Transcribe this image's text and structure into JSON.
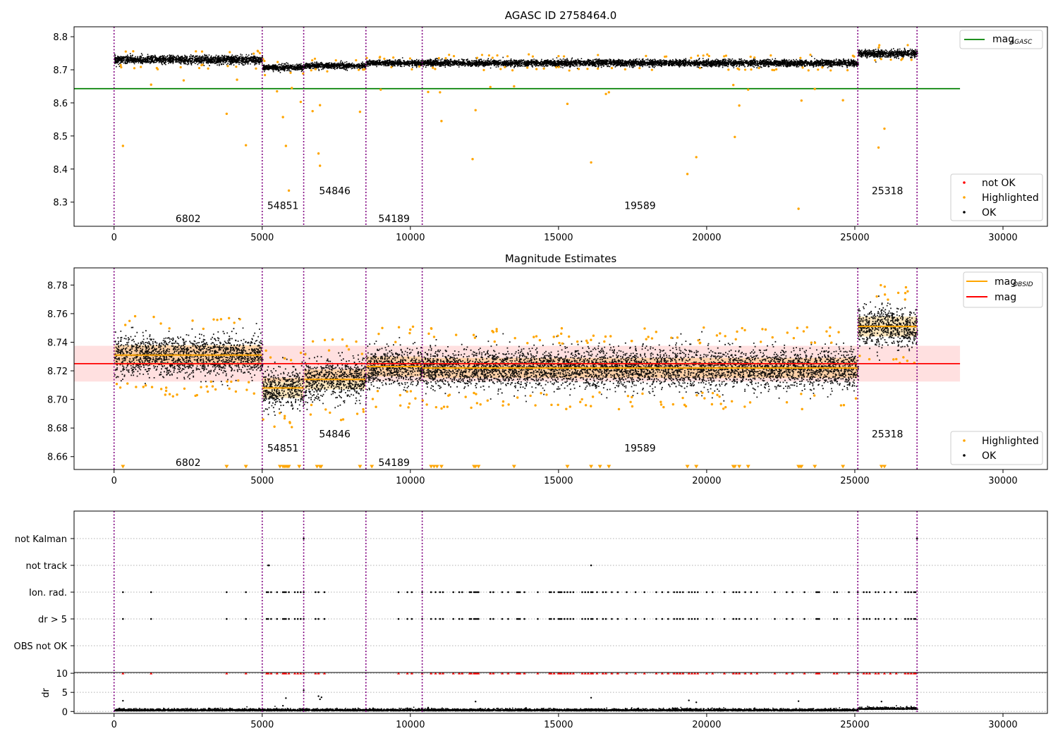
{
  "figure": {
    "panels": [
      {
        "id": "top",
        "title": "AGASC ID 2758464.0",
        "x_ticks": [
          0,
          5000,
          10000,
          15000,
          20000,
          25000,
          30000
        ],
        "y_ticks": [
          8.3,
          8.4,
          8.5,
          8.6,
          8.7,
          8.8
        ]
      },
      {
        "id": "middle",
        "title": "Magnitude Estimates",
        "x_ticks": [
          0,
          5000,
          10000,
          15000,
          20000,
          25000,
          30000
        ],
        "y_ticks": [
          8.66,
          8.68,
          8.7,
          8.72,
          8.74,
          8.76,
          8.78
        ]
      },
      {
        "id": "flags",
        "title": "",
        "y_labels": [
          "not Kalman",
          "not track",
          "Ion. rad.",
          "dr > 5",
          "OBS not OK"
        ]
      },
      {
        "id": "dr",
        "title": "",
        "ylabel": "dr",
        "x_ticks": [
          0,
          5000,
          10000,
          15000,
          20000,
          25000,
          30000
        ],
        "y_ticks": [
          0,
          5,
          10
        ]
      }
    ],
    "legends": {
      "top_line": {
        "label": "mag",
        "subscript": "AGASC",
        "color": "#008000"
      },
      "top_points": [
        {
          "label": "not OK",
          "color": "#ff0000"
        },
        {
          "label": "Highlighted",
          "color": "#ffa500"
        },
        {
          "label": "OK",
          "color": "#000000"
        }
      ],
      "middle_lines": [
        {
          "label": "mag",
          "subscript": "OBSID",
          "color": "#ffa500"
        },
        {
          "label": "mag",
          "subscript": "",
          "color": "#ff0000"
        }
      ],
      "middle_points": [
        {
          "label": "Highlighted",
          "color": "#ffa500"
        },
        {
          "label": "OK",
          "color": "#000000"
        }
      ]
    },
    "boundaries": [
      0,
      5000,
      6400,
      8500,
      10400,
      25100,
      27100
    ],
    "obsids": [
      {
        "id": "6802",
        "start": 0,
        "end": 5000,
        "top_y": 8.25,
        "mid_y": 8.656
      },
      {
        "id": "54851",
        "start": 5000,
        "end": 6400,
        "top_y": 8.29,
        "mid_y": 8.666
      },
      {
        "id": "54846",
        "start": 6400,
        "end": 8500,
        "top_y": 8.335,
        "mid_y": 8.676
      },
      {
        "id": "54189",
        "start": 8500,
        "end": 10400,
        "top_y": 8.25,
        "mid_y": 8.656
      },
      {
        "id": "19589",
        "start": 10400,
        "end": 25100,
        "top_y": 8.29,
        "mid_y": 8.666
      },
      {
        "id": "25318",
        "start": 25100,
        "end": 27100,
        "top_y": 8.335,
        "mid_y": 8.676
      }
    ]
  },
  "chart_data": [
    {
      "type": "scatter",
      "title": "AGASC ID 2758464.0",
      "xlim": [
        -1350,
        31500
      ],
      "ylim": [
        8.227,
        8.83
      ],
      "grid": false,
      "legend": [
        "top-right",
        "bottom-right"
      ],
      "hlines": [
        {
          "name": "mag_AGASC",
          "y": 8.643,
          "x_range": [
            -1350,
            28550
          ],
          "color": "#008000"
        }
      ],
      "segments": [
        {
          "x_range": [
            0,
            5000
          ],
          "mean": 8.732,
          "spread": 0.01
        },
        {
          "x_range": [
            5000,
            6400
          ],
          "mean": 8.708,
          "spread": 0.008
        },
        {
          "x_range": [
            6400,
            8500
          ],
          "mean": 8.714,
          "spread": 0.007
        },
        {
          "x_range": [
            8500,
            10400
          ],
          "mean": 8.722,
          "spread": 0.007
        },
        {
          "x_range": [
            10400,
            25100
          ],
          "mean": 8.722,
          "spread": 0.008
        },
        {
          "x_range": [
            25100,
            27100
          ],
          "mean": 8.751,
          "spread": 0.009
        }
      ],
      "highlighted_outliers": [
        [
          300,
          8.47
        ],
        [
          1250,
          8.655
        ],
        [
          2350,
          8.668
        ],
        [
          3800,
          8.567
        ],
        [
          4150,
          8.67
        ],
        [
          4450,
          8.472
        ],
        [
          5500,
          8.635
        ],
        [
          5700,
          8.557
        ],
        [
          5800,
          8.47
        ],
        [
          5900,
          8.335
        ],
        [
          6000,
          8.645
        ],
        [
          6300,
          8.603
        ],
        [
          6700,
          8.575
        ],
        [
          6900,
          8.447
        ],
        [
          6950,
          8.41
        ],
        [
          6950,
          8.593
        ],
        [
          8300,
          8.573
        ],
        [
          9000,
          8.64
        ],
        [
          10600,
          8.633
        ],
        [
          11000,
          8.632
        ],
        [
          11050,
          8.545
        ],
        [
          12200,
          8.578
        ],
        [
          12100,
          8.43
        ],
        [
          12700,
          8.648
        ],
        [
          13500,
          8.65
        ],
        [
          15300,
          8.597
        ],
        [
          16100,
          8.42
        ],
        [
          16700,
          8.632
        ],
        [
          16600,
          8.627
        ],
        [
          19350,
          8.385
        ],
        [
          19650,
          8.436
        ],
        [
          20900,
          8.654
        ],
        [
          20950,
          8.497
        ],
        [
          21100,
          8.592
        ],
        [
          21400,
          8.64
        ],
        [
          23100,
          8.28
        ],
        [
          23200,
          8.607
        ],
        [
          23650,
          8.642
        ],
        [
          24600,
          8.608
        ],
        [
          25800,
          8.465
        ],
        [
          26000,
          8.522
        ]
      ]
    },
    {
      "type": "scatter",
      "title": "Magnitude Estimates",
      "xlim": [
        -1350,
        31500
      ],
      "ylim": [
        8.651,
        8.792
      ],
      "grid": false,
      "legend": [
        "top-right",
        "bottom-right"
      ],
      "mag": 8.725,
      "mag_band": [
        8.7125,
        8.7375
      ],
      "mag_x_range": [
        -1350,
        28550
      ],
      "mag_obsid": [
        {
          "obsid": "6802",
          "x_range": [
            0,
            5000
          ],
          "value": 8.731
        },
        {
          "obsid": "54851",
          "x_range": [
            5000,
            6400
          ],
          "value": 8.708
        },
        {
          "obsid": "54846",
          "x_range": [
            6400,
            8500
          ],
          "value": 8.714
        },
        {
          "obsid": "54189",
          "x_range": [
            8500,
            10400
          ],
          "value": 8.723
        },
        {
          "obsid": "19589",
          "x_range": [
            10400,
            25100
          ],
          "value": 8.722
        },
        {
          "obsid": "25318",
          "x_range": [
            25100,
            27100
          ],
          "value": 8.751
        }
      ],
      "clipped_low_markers_x": [
        300,
        3800,
        4450,
        5600,
        5700,
        5750,
        5800,
        5850,
        5900,
        6250,
        6850,
        6950,
        6990,
        8300,
        8700,
        10700,
        10800,
        10900,
        11050,
        12150,
        12200,
        12300,
        13500,
        15300,
        16100,
        16400,
        16700,
        19350,
        19650,
        20900,
        20950,
        21100,
        21400,
        23100,
        23150,
        23200,
        23650,
        24600,
        25900,
        26000
      ]
    },
    {
      "type": "scatter",
      "title": "",
      "categories": [
        "not Kalman",
        "not track",
        "Ion. rad.",
        "dr > 5",
        "OBS not OK"
      ],
      "not_kalman_x": [
        6400,
        27100
      ],
      "not_track_x": [
        5200,
        5230,
        16100
      ],
      "ion_rad_x": [
        300,
        1250,
        3800,
        4450,
        5150,
        5200,
        5300,
        5500,
        5700,
        5750,
        5800,
        5900,
        6100,
        6200,
        6300,
        6400,
        6800,
        6900,
        7100,
        9600,
        9900,
        10050,
        10400,
        10700,
        10850,
        11000,
        11100,
        11450,
        11650,
        11750,
        12000,
        12050,
        12150,
        12200,
        12250,
        12300,
        12700,
        12800,
        13100,
        13300,
        13600,
        13650,
        13700,
        13850,
        14300,
        14700,
        14750,
        14850,
        15000,
        15050,
        15100,
        15200,
        15300,
        15400,
        15500,
        15800,
        15900,
        16000,
        16100,
        16150,
        16300,
        16500,
        16600,
        16800,
        17000,
        17300,
        17600,
        17900,
        18300,
        18500,
        18700,
        18900,
        19000,
        19100,
        19200,
        19400,
        19500,
        19600,
        19700,
        20000,
        20200,
        20600,
        20900,
        21000,
        21100,
        21300,
        21500,
        21700,
        22300,
        22700,
        22900,
        23300,
        23700,
        23750,
        23800,
        24300,
        24400,
        24800,
        25100,
        25300,
        25400,
        25500,
        25700,
        25800,
        26000,
        26200,
        26400,
        26700,
        26800,
        26900,
        27000,
        27050
      ],
      "dr_gt5_x": [
        300,
        1250,
        3800,
        4450,
        5150,
        5200,
        5300,
        5500,
        5700,
        5750,
        5800,
        5900,
        6100,
        6200,
        6300,
        6400,
        6800,
        6900,
        7100,
        9600,
        9900,
        10050,
        10400,
        10700,
        10850,
        11000,
        11100,
        11450,
        11650,
        11750,
        12000,
        12050,
        12150,
        12200,
        12250,
        12300,
        12700,
        12800,
        13100,
        13300,
        13600,
        13650,
        13700,
        13850,
        14300,
        14700,
        14750,
        14850,
        15000,
        15050,
        15100,
        15200,
        15300,
        15400,
        15500,
        15800,
        15900,
        16000,
        16100,
        16150,
        16300,
        16500,
        16600,
        16800,
        17000,
        17300,
        17600,
        17900,
        18300,
        18500,
        18700,
        18900,
        19000,
        19100,
        19200,
        19400,
        19500,
        19600,
        19700,
        20000,
        20200,
        20600,
        20900,
        21000,
        21100,
        21300,
        21500,
        21700,
        22300,
        22700,
        22900,
        23300,
        23700,
        23750,
        23800,
        24300,
        24400,
        24800,
        25100,
        25300,
        25400,
        25500,
        25700,
        25800,
        26000,
        26200,
        26400,
        26700,
        26800,
        26900,
        27000,
        27050
      ],
      "obs_not_ok_x": []
    },
    {
      "type": "scatter",
      "title": "",
      "ylabel": "dr",
      "ylim": [
        -0.5,
        10.2
      ],
      "xlim": [
        -1350,
        31500
      ],
      "baseline": 0.3,
      "clipped_at": 10,
      "notable_points": [
        [
          300,
          2.8
        ],
        [
          5700,
          1.5
        ],
        [
          5800,
          3.5
        ],
        [
          6400,
          5.5
        ],
        [
          6900,
          4
        ],
        [
          6950,
          3.2
        ],
        [
          7000,
          3.7
        ],
        [
          10600,
          1.0
        ],
        [
          12200,
          2.6
        ],
        [
          16100,
          3.6
        ],
        [
          19400,
          2.9
        ],
        [
          19650,
          2.4
        ],
        [
          23100,
          2.7
        ],
        [
          25900,
          2.6
        ]
      ]
    }
  ]
}
